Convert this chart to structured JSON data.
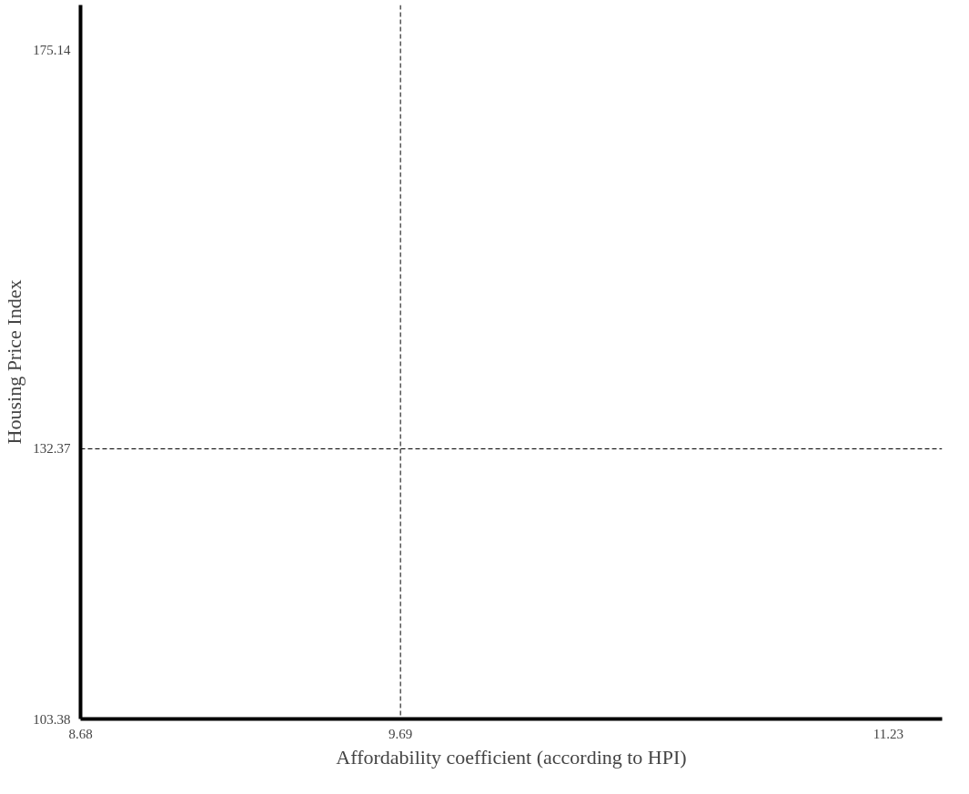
{
  "chart_data": {
    "type": "scatter",
    "xlabel": "Affordability coefficient (according to HPI)",
    "ylabel": "Housing Price Index",
    "xlim": [
      8.68,
      11.4
    ],
    "ylim": [
      103.38,
      180
    ],
    "xticks": [
      8.68,
      9.69,
      11.23
    ],
    "yticks": [
      103.38,
      132.37,
      175.14
    ],
    "ref_lines": [
      {
        "axis": "x",
        "value": 9.69,
        "line_style": "dashed",
        "color": "#000000"
      },
      {
        "axis": "y",
        "value": 132.37,
        "line_style": "dashed",
        "color": "#000000"
      }
    ],
    "grid": false
  }
}
